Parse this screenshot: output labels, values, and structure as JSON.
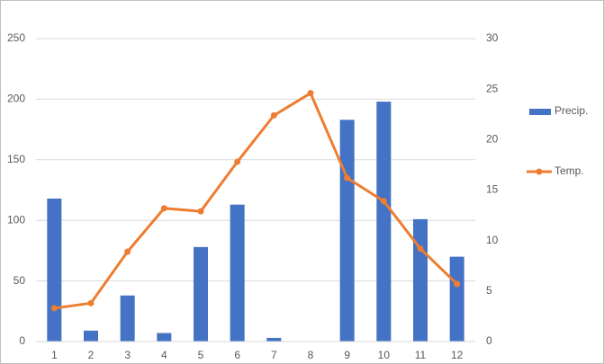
{
  "chart_data": {
    "type": "bar",
    "categories": [
      "1",
      "2",
      "3",
      "4",
      "5",
      "6",
      "7",
      "8",
      "9",
      "10",
      "11",
      "12"
    ],
    "series": [
      {
        "name": "Precip.",
        "color": "#4472c4",
        "type": "bar",
        "values": [
          118,
          9,
          38,
          7,
          78,
          113,
          3,
          0,
          183,
          198,
          101,
          70
        ]
      },
      {
        "name": "Temp.",
        "color": "#ed7d31",
        "type": "line",
        "axis": "y2",
        "values": [
          3.3,
          3.8,
          8.9,
          13.2,
          12.9,
          17.8,
          22.4,
          24.6,
          16.2,
          13.9,
          9.2,
          5.7
        ]
      }
    ],
    "ylim": [
      0,
      250
    ],
    "yticks": [
      0,
      50,
      100,
      150,
      200,
      250
    ],
    "y2lim": [
      0,
      30
    ],
    "y2ticks": [
      0,
      5,
      10,
      15,
      20,
      25,
      30
    ],
    "grid": true,
    "legend": "right"
  }
}
